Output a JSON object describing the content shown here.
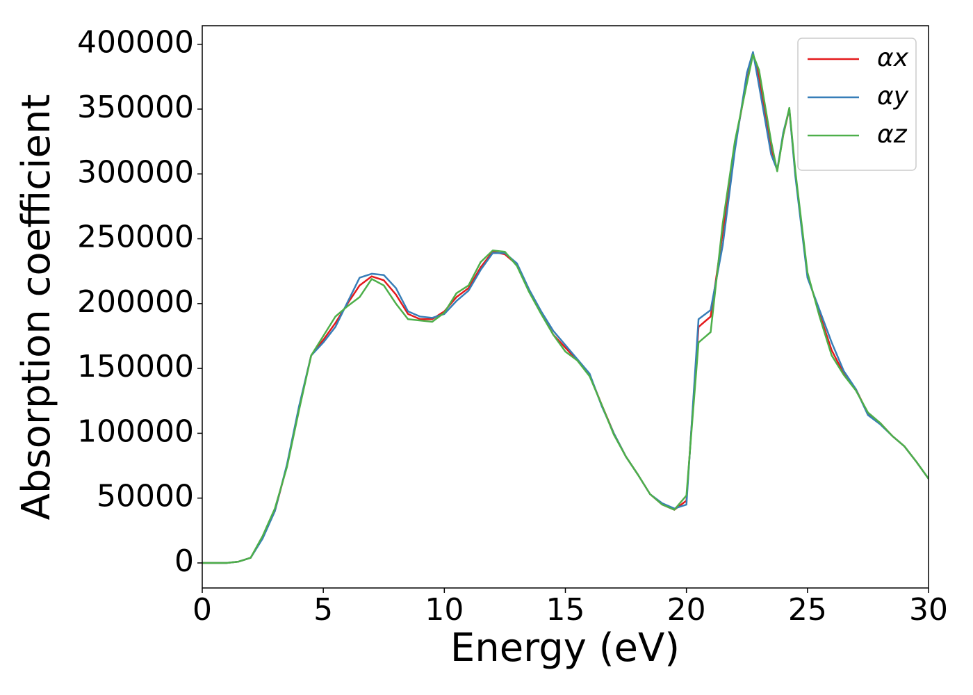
{
  "chart_data": {
    "type": "line",
    "xlabel": "Energy (eV)",
    "ylabel": "Absorption coefficient",
    "x": [
      0,
      0.5,
      1,
      1.5,
      2,
      2.5,
      3,
      3.5,
      4,
      4.5,
      5,
      5.5,
      6,
      6.5,
      7,
      7.5,
      8,
      8.5,
      9,
      9.5,
      10,
      10.5,
      11,
      11.5,
      12,
      12.5,
      13,
      13.5,
      14,
      14.5,
      15,
      15.5,
      16,
      16.5,
      17,
      17.5,
      18,
      18.5,
      19,
      19.5,
      20,
      20.5,
      21,
      21.5,
      22,
      22.5,
      22.75,
      23,
      23.5,
      23.75,
      24,
      24.25,
      24.5,
      25,
      25.5,
      26,
      26.5,
      27,
      27.5,
      28,
      28.5,
      29,
      29.5,
      30
    ],
    "series": [
      {
        "name": "αx",
        "color": "#e41a1c",
        "values": [
          0,
          0,
          0,
          1000,
          4000,
          20000,
          40000,
          75000,
          120000,
          160000,
          172000,
          185000,
          200000,
          214000,
          221000,
          218000,
          207000,
          192000,
          188000,
          188000,
          194000,
          205000,
          212000,
          228000,
          240000,
          238000,
          230000,
          210000,
          193000,
          176000,
          166000,
          156000,
          145000,
          122000,
          100000,
          82000,
          68000,
          53000,
          45000,
          41000,
          48000,
          182000,
          190000,
          255000,
          322000,
          372000,
          393000,
          375000,
          320000,
          303000,
          330000,
          350000,
          300000,
          222000,
          192000,
          164000,
          146000,
          134000,
          115000,
          108000,
          98000,
          90000,
          78000,
          65000
        ]
      },
      {
        "name": "αy",
        "color": "#377eb8",
        "values": [
          0,
          0,
          0,
          1000,
          4000,
          19000,
          40000,
          76000,
          121000,
          160000,
          170000,
          182000,
          201000,
          220000,
          223000,
          222000,
          212000,
          194000,
          190000,
          189000,
          192000,
          202000,
          210000,
          226000,
          239000,
          239000,
          231000,
          211000,
          194000,
          179000,
          168000,
          157000,
          146000,
          121000,
          100000,
          82000,
          68000,
          53000,
          46000,
          42000,
          45000,
          188000,
          195000,
          245000,
          318000,
          378000,
          394000,
          368000,
          315000,
          303000,
          332000,
          350000,
          298000,
          220000,
          195000,
          170000,
          148000,
          134000,
          114000,
          107000,
          98000,
          90000,
          78000,
          65000
        ]
      },
      {
        "name": "αz",
        "color": "#4daf4a",
        "values": [
          0,
          0,
          0,
          1000,
          4000,
          21000,
          42000,
          74000,
          118000,
          160000,
          175000,
          190000,
          198000,
          205000,
          219000,
          214000,
          200000,
          188000,
          187000,
          186000,
          193000,
          208000,
          214000,
          232000,
          241000,
          240000,
          229000,
          209000,
          192000,
          176000,
          163000,
          156000,
          144000,
          122000,
          99000,
          82000,
          68000,
          53000,
          45000,
          41000,
          52000,
          170000,
          178000,
          262000,
          325000,
          370000,
          392000,
          380000,
          325000,
          302000,
          330000,
          351000,
          302000,
          224000,
          190000,
          160000,
          145000,
          133000,
          116000,
          108000,
          98000,
          90000,
          78000,
          65000
        ]
      }
    ],
    "xlim": [
      0,
      30
    ],
    "xticks": [
      0,
      5,
      10,
      15,
      20,
      25,
      30
    ],
    "ylim": [
      -19300,
      414300
    ],
    "yticks": [
      0,
      50000,
      100000,
      150000,
      200000,
      250000,
      300000,
      350000,
      400000
    ],
    "legend": "upper right"
  }
}
